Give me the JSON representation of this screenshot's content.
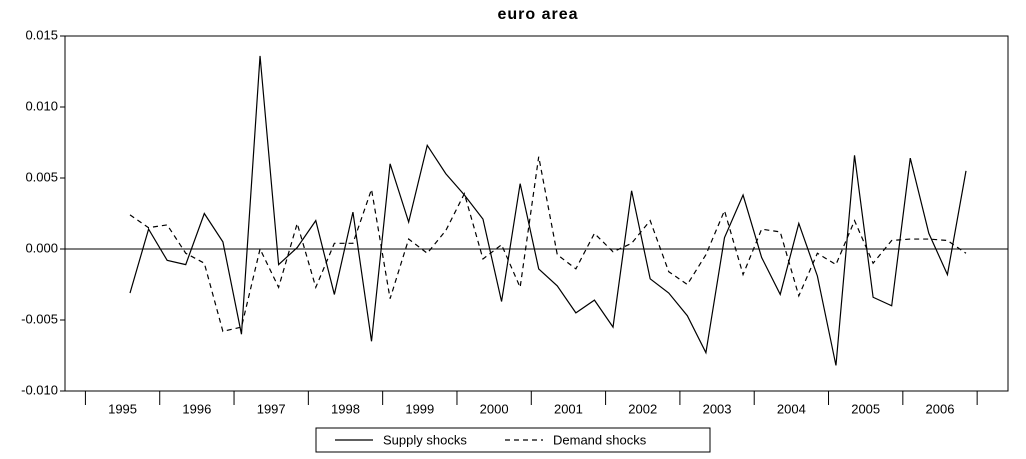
{
  "chart_data": {
    "type": "line",
    "title": "euro area",
    "categories": [
      "1995",
      null,
      null,
      null,
      "1996",
      null,
      null,
      null,
      "1997",
      null,
      null,
      null,
      "1998",
      null,
      null,
      null,
      "1999",
      null,
      null,
      null,
      "2000",
      null,
      null,
      null,
      "2001",
      null,
      null,
      null,
      "2002",
      null,
      null,
      null,
      "2003",
      null,
      null,
      null,
      "2004",
      null,
      null,
      null,
      "2005",
      null,
      null,
      null,
      "2006",
      null
    ],
    "series": [
      {
        "name": "Supply shocks",
        "color": "#000000",
        "dash": "solid",
        "values": [
          -0.0031,
          0.0014,
          -0.0008,
          -0.0011,
          0.0025,
          0.0005,
          -0.006,
          0.0136,
          -0.0011,
          0.0001,
          0.002,
          -0.0032,
          0.0026,
          -0.0065,
          0.006,
          0.0019,
          0.0073,
          0.0053,
          0.0038,
          0.0021,
          -0.0037,
          0.0046,
          -0.0014,
          -0.0026,
          -0.0045,
          -0.0036,
          -0.0055,
          0.0041,
          -0.0021,
          -0.0031,
          -0.0047,
          -0.0073,
          0.0008,
          0.0038,
          -0.0006,
          -0.0032,
          0.0018,
          -0.0019,
          -0.0082,
          0.0066,
          -0.0034,
          -0.004,
          0.0064,
          0.0011,
          -0.0018,
          0.0055
        ]
      },
      {
        "name": "Demand shocks",
        "color": "#000000",
        "dash": "dashed",
        "values": [
          0.0024,
          0.0015,
          0.0017,
          -0.0003,
          -0.001,
          -0.0058,
          -0.0055,
          0.0,
          -0.0027,
          0.0018,
          -0.0027,
          0.0004,
          0.0004,
          0.0042,
          -0.0035,
          0.0007,
          -0.0003,
          0.0013,
          0.0039,
          -0.0007,
          0.0003,
          -0.0027,
          0.0065,
          -0.0004,
          -0.0014,
          0.0011,
          -0.0002,
          0.0004,
          0.002,
          -0.0016,
          -0.0025,
          -0.0004,
          0.0027,
          -0.0018,
          0.0014,
          0.0012,
          -0.0033,
          -0.0003,
          -0.0011,
          0.002,
          -0.001,
          0.0006,
          0.0007,
          0.0007,
          0.0006,
          -0.0003
        ]
      }
    ],
    "ylim": [
      -0.01,
      0.015
    ],
    "yticks": [
      {
        "value": -0.01,
        "label": "-0.010"
      },
      -0.005,
      {
        "value": 0,
        "label": "0.000"
      },
      0.005,
      {
        "value": 0.01,
        "label": "0.010"
      },
      0.015
    ],
    "legend": "bottom"
  }
}
